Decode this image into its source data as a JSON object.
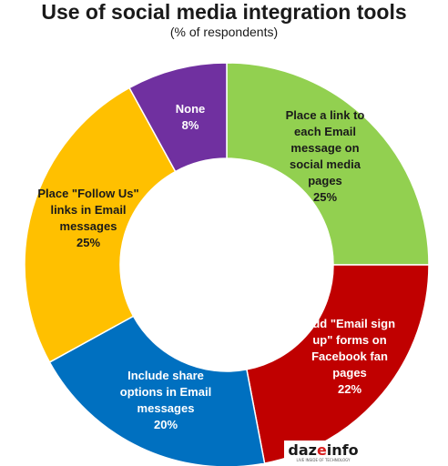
{
  "chart_data": {
    "type": "donut",
    "title": "Use of social media integration tools",
    "subtitle": "(% of respondents)",
    "slices": [
      {
        "label_lines": [
          "Place a link to",
          "each Email",
          "message on",
          "social media",
          "pages"
        ],
        "value": 25,
        "value_text": "25%",
        "color": "#92d050",
        "text_color": "#1a1a1a"
      },
      {
        "label_lines": [
          "Add \"Email sign",
          "up\" forms on",
          "Facebook fan",
          "pages"
        ],
        "value": 22,
        "value_text": "22%",
        "color": "#c00000",
        "text_color": "#ffffff"
      },
      {
        "label_lines": [
          "Include share",
          "options in Email",
          "messages"
        ],
        "value": 20,
        "value_text": "20%",
        "color": "#0070c0",
        "text_color": "#ffffff"
      },
      {
        "label_lines": [
          "Place \"Follow Us\"",
          "links in Email",
          "messages"
        ],
        "value": 25,
        "value_text": "25%",
        "color": "#ffc000",
        "text_color": "#1a1a1a"
      },
      {
        "label_lines": [
          "None"
        ],
        "value": 8,
        "value_text": "8%",
        "color": "#7030a0",
        "text_color": "#ffffff"
      }
    ]
  },
  "watermark": {
    "brand": "dazeinfo",
    "tagline": "LIVE INSIDE OF TECHNOLOGY"
  },
  "colors": {
    "logo_dark": "#1a1a1a",
    "logo_red": "#d81e1e"
  }
}
